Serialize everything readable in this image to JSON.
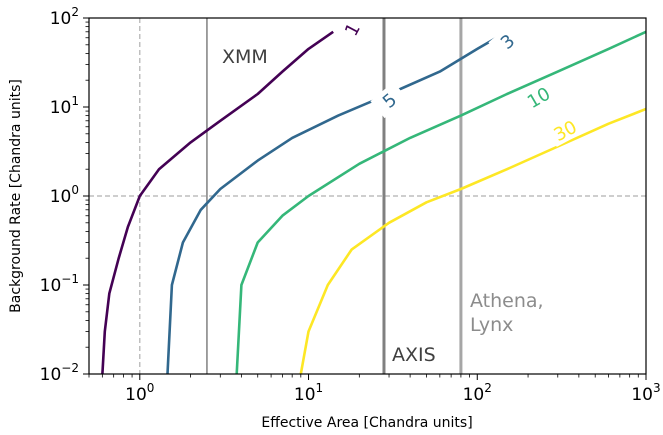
{
  "chart_data": {
    "type": "line",
    "xlabel": "Effective Area [Chandra units]",
    "ylabel": "Background Rate [Chandra units]",
    "xscale": "log",
    "yscale": "log",
    "xlim": [
      0.5,
      1000
    ],
    "ylim": [
      0.01,
      100
    ],
    "x_ticks": [
      {
        "value": 1,
        "base": "10",
        "exp": "0"
      },
      {
        "value": 10,
        "base": "10",
        "exp": "1"
      },
      {
        "value": 100,
        "base": "10",
        "exp": "2"
      },
      {
        "value": 1000,
        "base": "10",
        "exp": "3"
      }
    ],
    "y_ticks": [
      {
        "value": 0.01,
        "base": "10",
        "exp": "−2"
      },
      {
        "value": 0.1,
        "base": "10",
        "exp": "−1"
      },
      {
        "value": 1,
        "base": "10",
        "exp": "0"
      },
      {
        "value": 10,
        "base": "10",
        "exp": "1"
      },
      {
        "value": 100,
        "base": "10",
        "exp": "2"
      }
    ],
    "grid": false,
    "reference_lines": [
      {
        "axis": "x",
        "value": 1,
        "style": "dashed",
        "color": "#b0b0b0"
      },
      {
        "axis": "y",
        "value": 1,
        "style": "dashed",
        "color": "#b0b0b0"
      }
    ],
    "mission_lines": [
      {
        "label": "XMM",
        "x": 2.5,
        "color": "#808080"
      },
      {
        "label": "AXIS",
        "x": 28,
        "color": "#808080"
      },
      {
        "label": "Athena,\nLynx",
        "x": 80,
        "color": "#a6a6a6"
      }
    ],
    "series": [
      {
        "label": "1",
        "color": "#440154",
        "x0": 0.5966,
        "points": [
          [
            0.6,
            0.01
          ],
          [
            0.62,
            0.03
          ],
          [
            0.66,
            0.08
          ],
          [
            0.75,
            0.2
          ],
          [
            0.85,
            0.45
          ],
          [
            1,
            1
          ],
          [
            1.3,
            2
          ],
          [
            2,
            4
          ],
          [
            3,
            7
          ],
          [
            5,
            14
          ],
          [
            7,
            25
          ],
          [
            10,
            45
          ],
          [
            14,
            70
          ]
        ]
      },
      {
        "label": "3",
        "color": "#31688e",
        "x0": 1.46,
        "points": [
          [
            1.46,
            0.01
          ],
          [
            1.55,
            0.1
          ],
          [
            1.8,
            0.3
          ],
          [
            2.3,
            0.7
          ],
          [
            3,
            1.2
          ],
          [
            5,
            2.5
          ],
          [
            8,
            4.5
          ],
          [
            15,
            8
          ],
          [
            30,
            14
          ],
          [
            60,
            25
          ],
          [
            100,
            45
          ],
          [
            130,
            60
          ]
        ]
      },
      {
        "label": "5",
        "color": "#31688e",
        "inline_label_at": [
          120,
          23
        ],
        "note": "label 5 sits on the 3 curve path region"
      },
      {
        "label": "10",
        "color": "#35b779",
        "x0": 3.75,
        "points": [
          [
            3.75,
            0.01
          ],
          [
            4,
            0.1
          ],
          [
            5,
            0.3
          ],
          [
            7,
            0.6
          ],
          [
            10,
            1
          ],
          [
            20,
            2.3
          ],
          [
            40,
            4.5
          ],
          [
            80,
            8
          ],
          [
            150,
            14
          ],
          [
            300,
            25
          ],
          [
            600,
            45
          ],
          [
            1000,
            70
          ]
        ]
      },
      {
        "label": "30",
        "color": "#fde725",
        "x0": 9,
        "points": [
          [
            9,
            0.01
          ],
          [
            10,
            0.03
          ],
          [
            13,
            0.1
          ],
          [
            18,
            0.25
          ],
          [
            30,
            0.5
          ],
          [
            50,
            0.85
          ],
          [
            80,
            1.2
          ],
          [
            150,
            2
          ],
          [
            300,
            3.6
          ],
          [
            600,
            6.5
          ],
          [
            1000,
            9.5
          ]
        ]
      }
    ]
  }
}
